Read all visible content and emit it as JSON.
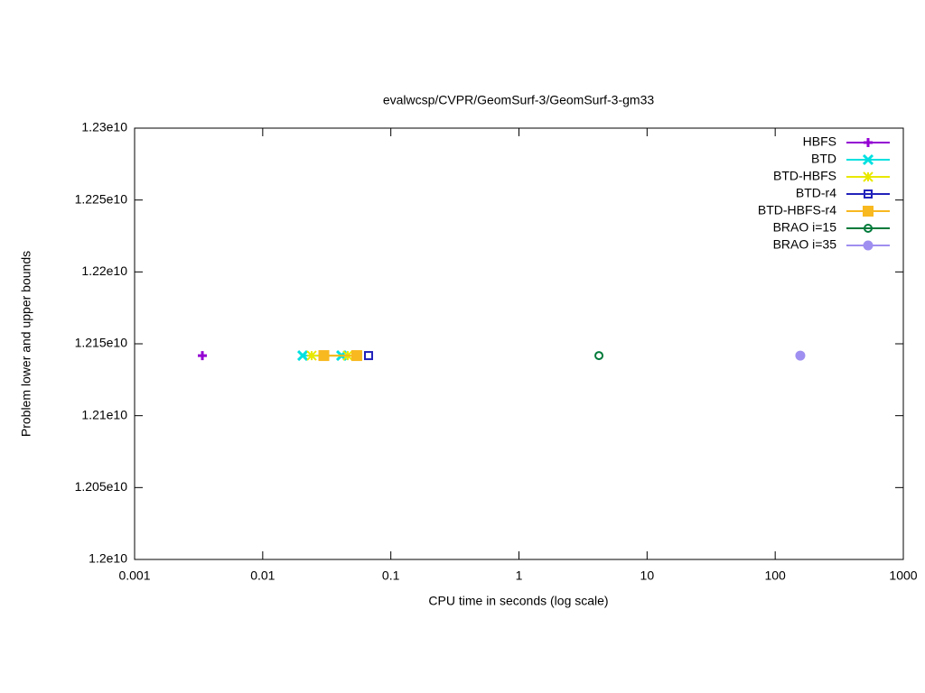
{
  "chart_data": {
    "type": "line",
    "title": "evalwcsp/CVPR/GeomSurf-3/GeomSurf-3-gm33",
    "xlabel": "CPU time in seconds (log scale)",
    "ylabel": "Problem lower and upper bounds",
    "xlog": true,
    "xlim": [
      0.001,
      1000
    ],
    "xticks": [
      0.001,
      0.01,
      0.1,
      1,
      10,
      100,
      1000
    ],
    "ylim": [
      12000000000,
      12300000000
    ],
    "yticks": [
      {
        "value": 12000000000,
        "label": "1.2e10"
      },
      {
        "value": 12050000000,
        "label": "1.205e10"
      },
      {
        "value": 12100000000,
        "label": "1.21e10"
      },
      {
        "value": 12150000000,
        "label": "1.215e10"
      },
      {
        "value": 12200000000,
        "label": "1.22e10"
      },
      {
        "value": 12250000000,
        "label": "1.225e10"
      },
      {
        "value": 12300000000,
        "label": "1.23e10"
      }
    ],
    "legend": "top-right",
    "series": [
      {
        "name": "HBFS",
        "color": "#9400d3",
        "x": [
          0.00338
        ],
        "values": [
          12141800000
        ]
      },
      {
        "name": "BTD",
        "color": "#00e0e0",
        "x": [
          0.0205,
          0.0412
        ],
        "values": [
          12141800000,
          12141800000
        ]
      },
      {
        "name": "BTD-HBFS",
        "color": "#e8e800",
        "x": [
          0.0241,
          0.0461
        ],
        "values": [
          12141800000,
          12141800000
        ]
      },
      {
        "name": "BTD-r4",
        "color": "#2222bb",
        "x": [
          0.067
        ],
        "values": [
          12141800000
        ]
      },
      {
        "name": "BTD-HBFS-r4",
        "color": "#f8b820",
        "x": [
          0.03,
          0.0542
        ],
        "values": [
          12141800000,
          12141800000
        ]
      },
      {
        "name": "BRAO i=15",
        "color": "#007a3a",
        "x": [
          4.21
        ],
        "values": [
          12141800000
        ]
      },
      {
        "name": "BRAO i=35",
        "color": "#9f8ff0",
        "x": [
          157
        ],
        "values": [
          12141800000
        ]
      }
    ]
  }
}
